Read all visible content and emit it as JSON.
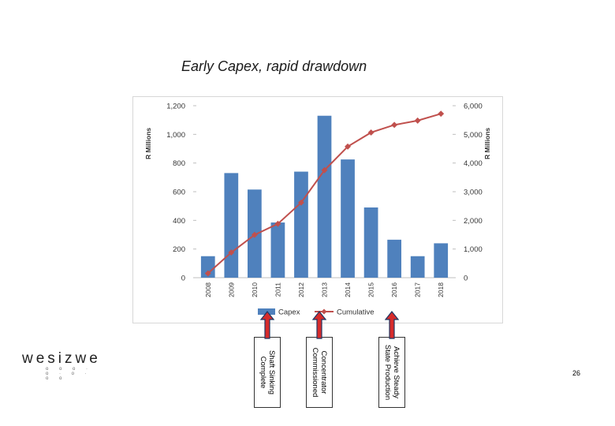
{
  "slide": {
    "title": "Early Capex, rapid drawdown",
    "page_number": "26",
    "logo_text": "wesizwe",
    "logo_subtext": "o o o · o · o · o o"
  },
  "callouts": [
    {
      "text": "Shaft Sinking\nComplete"
    },
    {
      "text": "Concentrator\nCommissioned"
    },
    {
      "text": "Achieve Steady\nState Production"
    }
  ],
  "colors": {
    "bar": "#4f81bd",
    "line": "#c0504d",
    "arrow_fill": "#d62b2b",
    "arrow_outline": "#1f3864"
  },
  "chart_data": {
    "type": "bar",
    "categories": [
      "2008",
      "2009",
      "2010",
      "2011",
      "2012",
      "2013",
      "2014",
      "2015",
      "2016",
      "2017",
      "2018"
    ],
    "series": [
      {
        "name": "Capex",
        "type": "bar",
        "axis": "left",
        "values": [
          150,
          730,
          615,
          385,
          740,
          1130,
          825,
          490,
          265,
          150,
          240
        ]
      },
      {
        "name": "Cumulative",
        "type": "line",
        "axis": "right",
        "values": [
          150,
          880,
          1495,
          1880,
          2620,
          3750,
          4575,
          5065,
          5330,
          5480,
          5720
        ]
      }
    ],
    "ylabel": "R Millions",
    "y2label": "R Millions",
    "ylim": [
      0,
      1200
    ],
    "y2lim": [
      0,
      6000
    ],
    "yticks": [
      "0",
      "200",
      "400",
      "600",
      "800",
      "1,000",
      "1,200"
    ],
    "y2ticks": [
      "0",
      "1,000",
      "2,000",
      "3,000",
      "4,000",
      "5,000",
      "6,000"
    ],
    "grid": false,
    "legend_position": "bottom"
  }
}
